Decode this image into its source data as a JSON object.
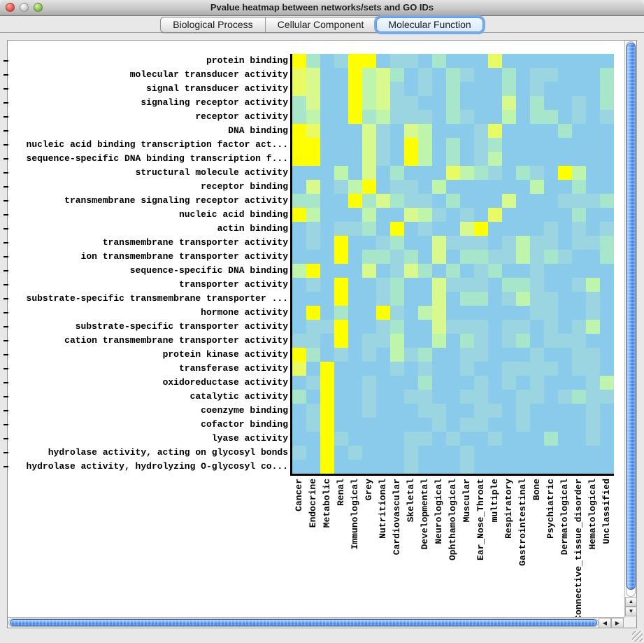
{
  "window": {
    "title": "Pvalue heatmap between networks/sets and GO IDs",
    "buttons": [
      {
        "name": "close-button",
        "color_inner": "#FFA79F",
        "color_outer": "#DD4438"
      },
      {
        "name": "minimize-button",
        "color_inner": "#FFFFFF",
        "color_outer": "#BEBEBE"
      },
      {
        "name": "zoom-button",
        "color_inner": "#D7F3A4",
        "color_outer": "#74B23C"
      }
    ]
  },
  "tabs": [
    {
      "label": "Biological Process",
      "selected": false
    },
    {
      "label": "Cellular Component",
      "selected": false
    },
    {
      "label": "Molecular Function",
      "selected": true
    }
  ],
  "icons": {
    "scroll_up": "▲",
    "scroll_down": "▼",
    "scroll_left": "◀",
    "scroll_right": "▶"
  },
  "chart_data": {
    "type": "heatmap",
    "title": "Pvalue heatmap between networks/sets and GO IDs",
    "legend_position": "none",
    "grid": false,
    "rows": [
      "protein binding",
      "molecular transducer activity",
      "signal transducer activity",
      "signaling receptor activity",
      "receptor activity",
      "DNA binding",
      "nucleic acid binding transcription factor act...",
      "sequence-specific DNA binding transcription f...",
      "structural molecule activity",
      "receptor binding",
      "transmembrane signaling receptor activity",
      "nucleic acid binding",
      "actin binding",
      "transmembrane transporter activity",
      "ion transmembrane transporter activity",
      "sequence-specific DNA binding",
      "transporter activity",
      "substrate-specific transmembrane transporter ...",
      "hormone activity",
      "substrate-specific transporter activity",
      "cation transmembrane transporter activity",
      "protein kinase activity",
      "transferase activity",
      "oxidoreductase activity",
      "catalytic activity",
      "coenzyme binding",
      "cofactor binding",
      "lyase activity",
      "hydrolase activity, acting on glycosyl bonds",
      "hydrolase activity, hydrolyzing O-glycosyl co..."
    ],
    "columns": [
      "Cancer",
      "Endocrine",
      "Metabolic",
      "Renal",
      "Immunological",
      "Grey",
      "Nutritional",
      "Cardiovascular",
      "Skeletal",
      "Developmental",
      "Neurological",
      "Ophthamological",
      "Muscular",
      "Ear_Nose_Throat",
      "multiple",
      "Respiratory",
      "Gastrointestinal",
      "Bone",
      "Psychiatric",
      "Dermatological",
      "Connective_tissue_disorder",
      "Hematological",
      "Unclassified"
    ],
    "palette": [
      "#8ACBEC",
      "#9BD5E2",
      "#A8E6CC",
      "#BFF4AD",
      "#D8F98E",
      "#E9FB62",
      "#FFFF00"
    ],
    "palette_meaning": "index 0 = high p-value (light blue) through 6 = most significant p-value (bright yellow)",
    "values": [
      [
        6,
        2,
        0,
        1,
        6,
        6,
        0,
        1,
        1,
        0,
        2,
        0,
        0,
        0,
        5,
        0,
        0,
        0,
        0,
        0,
        0,
        0,
        0
      ],
      [
        5,
        4,
        0,
        0,
        6,
        3,
        4,
        2,
        0,
        1,
        0,
        2,
        1,
        0,
        0,
        2,
        0,
        1,
        1,
        0,
        0,
        0,
        2
      ],
      [
        5,
        4,
        0,
        0,
        6,
        3,
        4,
        1,
        0,
        1,
        0,
        2,
        0,
        0,
        0,
        2,
        0,
        1,
        0,
        0,
        0,
        0,
        2
      ],
      [
        2,
        4,
        0,
        0,
        6,
        3,
        4,
        1,
        1,
        0,
        0,
        2,
        0,
        0,
        0,
        4,
        0,
        2,
        0,
        0,
        1,
        0,
        2
      ],
      [
        2,
        3,
        0,
        0,
        6,
        2,
        3,
        1,
        1,
        1,
        0,
        2,
        1,
        0,
        0,
        3,
        0,
        2,
        2,
        0,
        1,
        0,
        1
      ],
      [
        6,
        5,
        0,
        0,
        0,
        4,
        1,
        0,
        4,
        3,
        0,
        0,
        0,
        1,
        5,
        0,
        0,
        0,
        0,
        2,
        0,
        0,
        0
      ],
      [
        6,
        6,
        0,
        0,
        0,
        4,
        1,
        0,
        6,
        3,
        0,
        2,
        0,
        1,
        2,
        0,
        0,
        0,
        0,
        0,
        0,
        0,
        0
      ],
      [
        6,
        6,
        0,
        0,
        0,
        4,
        1,
        0,
        6,
        3,
        0,
        2,
        0,
        1,
        3,
        0,
        0,
        0,
        0,
        0,
        0,
        0,
        0
      ],
      [
        0,
        0,
        0,
        3,
        0,
        4,
        0,
        2,
        0,
        0,
        0,
        5,
        3,
        2,
        1,
        0,
        2,
        1,
        0,
        6,
        3,
        0,
        0
      ],
      [
        0,
        4,
        0,
        1,
        3,
        6,
        0,
        1,
        1,
        0,
        3,
        0,
        0,
        0,
        0,
        0,
        0,
        3,
        0,
        0,
        2,
        0,
        0
      ],
      [
        2,
        2,
        0,
        0,
        6,
        2,
        4,
        2,
        1,
        1,
        0,
        2,
        0,
        0,
        0,
        4,
        0,
        0,
        0,
        1,
        1,
        1,
        2
      ],
      [
        6,
        3,
        0,
        0,
        0,
        3,
        0,
        0,
        4,
        3,
        1,
        0,
        1,
        0,
        5,
        0,
        0,
        0,
        0,
        0,
        2,
        0,
        0
      ],
      [
        0,
        1,
        0,
        1,
        1,
        2,
        0,
        6,
        0,
        1,
        0,
        0,
        4,
        6,
        0,
        0,
        0,
        0,
        1,
        0,
        1,
        0,
        1
      ],
      [
        0,
        1,
        0,
        6,
        0,
        0,
        1,
        2,
        0,
        0,
        4,
        1,
        1,
        1,
        0,
        1,
        3,
        1,
        1,
        0,
        1,
        1,
        2
      ],
      [
        0,
        0,
        0,
        6,
        0,
        2,
        2,
        1,
        2,
        0,
        4,
        0,
        2,
        2,
        1,
        1,
        3,
        1,
        2,
        1,
        0,
        0,
        2
      ],
      [
        3,
        6,
        0,
        0,
        0,
        4,
        0,
        1,
        4,
        2,
        0,
        2,
        0,
        1,
        2,
        0,
        0,
        1,
        0,
        0,
        0,
        0,
        0
      ],
      [
        0,
        1,
        0,
        6,
        0,
        0,
        1,
        2,
        0,
        0,
        4,
        1,
        1,
        1,
        0,
        2,
        2,
        1,
        0,
        0,
        1,
        3,
        0
      ],
      [
        0,
        0,
        0,
        6,
        0,
        0,
        1,
        2,
        0,
        0,
        4,
        0,
        2,
        2,
        0,
        1,
        3,
        1,
        1,
        0,
        0,
        1,
        0
      ],
      [
        0,
        6,
        0,
        2,
        0,
        0,
        6,
        1,
        0,
        3,
        4,
        0,
        0,
        0,
        0,
        0,
        0,
        1,
        1,
        0,
        0,
        1,
        0
      ],
      [
        0,
        1,
        1,
        6,
        0,
        0,
        1,
        2,
        0,
        0,
        4,
        1,
        1,
        1,
        0,
        1,
        1,
        0,
        1,
        0,
        1,
        3,
        0
      ],
      [
        1,
        1,
        0,
        6,
        0,
        1,
        1,
        3,
        0,
        0,
        3,
        0,
        2,
        1,
        0,
        1,
        2,
        0,
        1,
        1,
        1,
        0,
        0
      ],
      [
        6,
        2,
        0,
        1,
        0,
        1,
        0,
        3,
        1,
        2,
        0,
        0,
        1,
        1,
        0,
        0,
        0,
        1,
        0,
        0,
        1,
        1,
        0
      ],
      [
        5,
        0,
        6,
        0,
        0,
        0,
        0,
        1,
        0,
        1,
        0,
        0,
        1,
        0,
        0,
        1,
        1,
        1,
        1,
        0,
        1,
        1,
        0
      ],
      [
        0,
        1,
        6,
        0,
        0,
        1,
        0,
        0,
        0,
        2,
        0,
        0,
        0,
        1,
        0,
        1,
        0,
        1,
        0,
        0,
        0,
        1,
        3
      ],
      [
        2,
        0,
        6,
        0,
        0,
        1,
        0,
        0,
        1,
        1,
        0,
        0,
        1,
        1,
        0,
        0,
        1,
        1,
        0,
        1,
        2,
        1,
        1
      ],
      [
        0,
        1,
        6,
        0,
        0,
        1,
        0,
        0,
        0,
        1,
        1,
        0,
        0,
        1,
        1,
        0,
        1,
        0,
        0,
        0,
        0,
        1,
        0
      ],
      [
        0,
        1,
        6,
        0,
        0,
        0,
        0,
        0,
        0,
        0,
        1,
        0,
        1,
        1,
        0,
        0,
        1,
        0,
        0,
        0,
        0,
        1,
        0
      ],
      [
        0,
        0,
        6,
        1,
        0,
        0,
        0,
        0,
        1,
        1,
        0,
        1,
        0,
        0,
        1,
        0,
        0,
        0,
        2,
        0,
        0,
        1,
        0
      ],
      [
        1,
        0,
        6,
        0,
        1,
        0,
        0,
        0,
        1,
        0,
        0,
        0,
        1,
        0,
        0,
        0,
        0,
        0,
        0,
        0,
        0,
        0,
        0
      ],
      [
        0,
        0,
        6,
        0,
        0,
        0,
        0,
        0,
        1,
        0,
        0,
        0,
        1,
        0,
        0,
        0,
        0,
        0,
        0,
        0,
        0,
        0,
        0
      ]
    ]
  }
}
